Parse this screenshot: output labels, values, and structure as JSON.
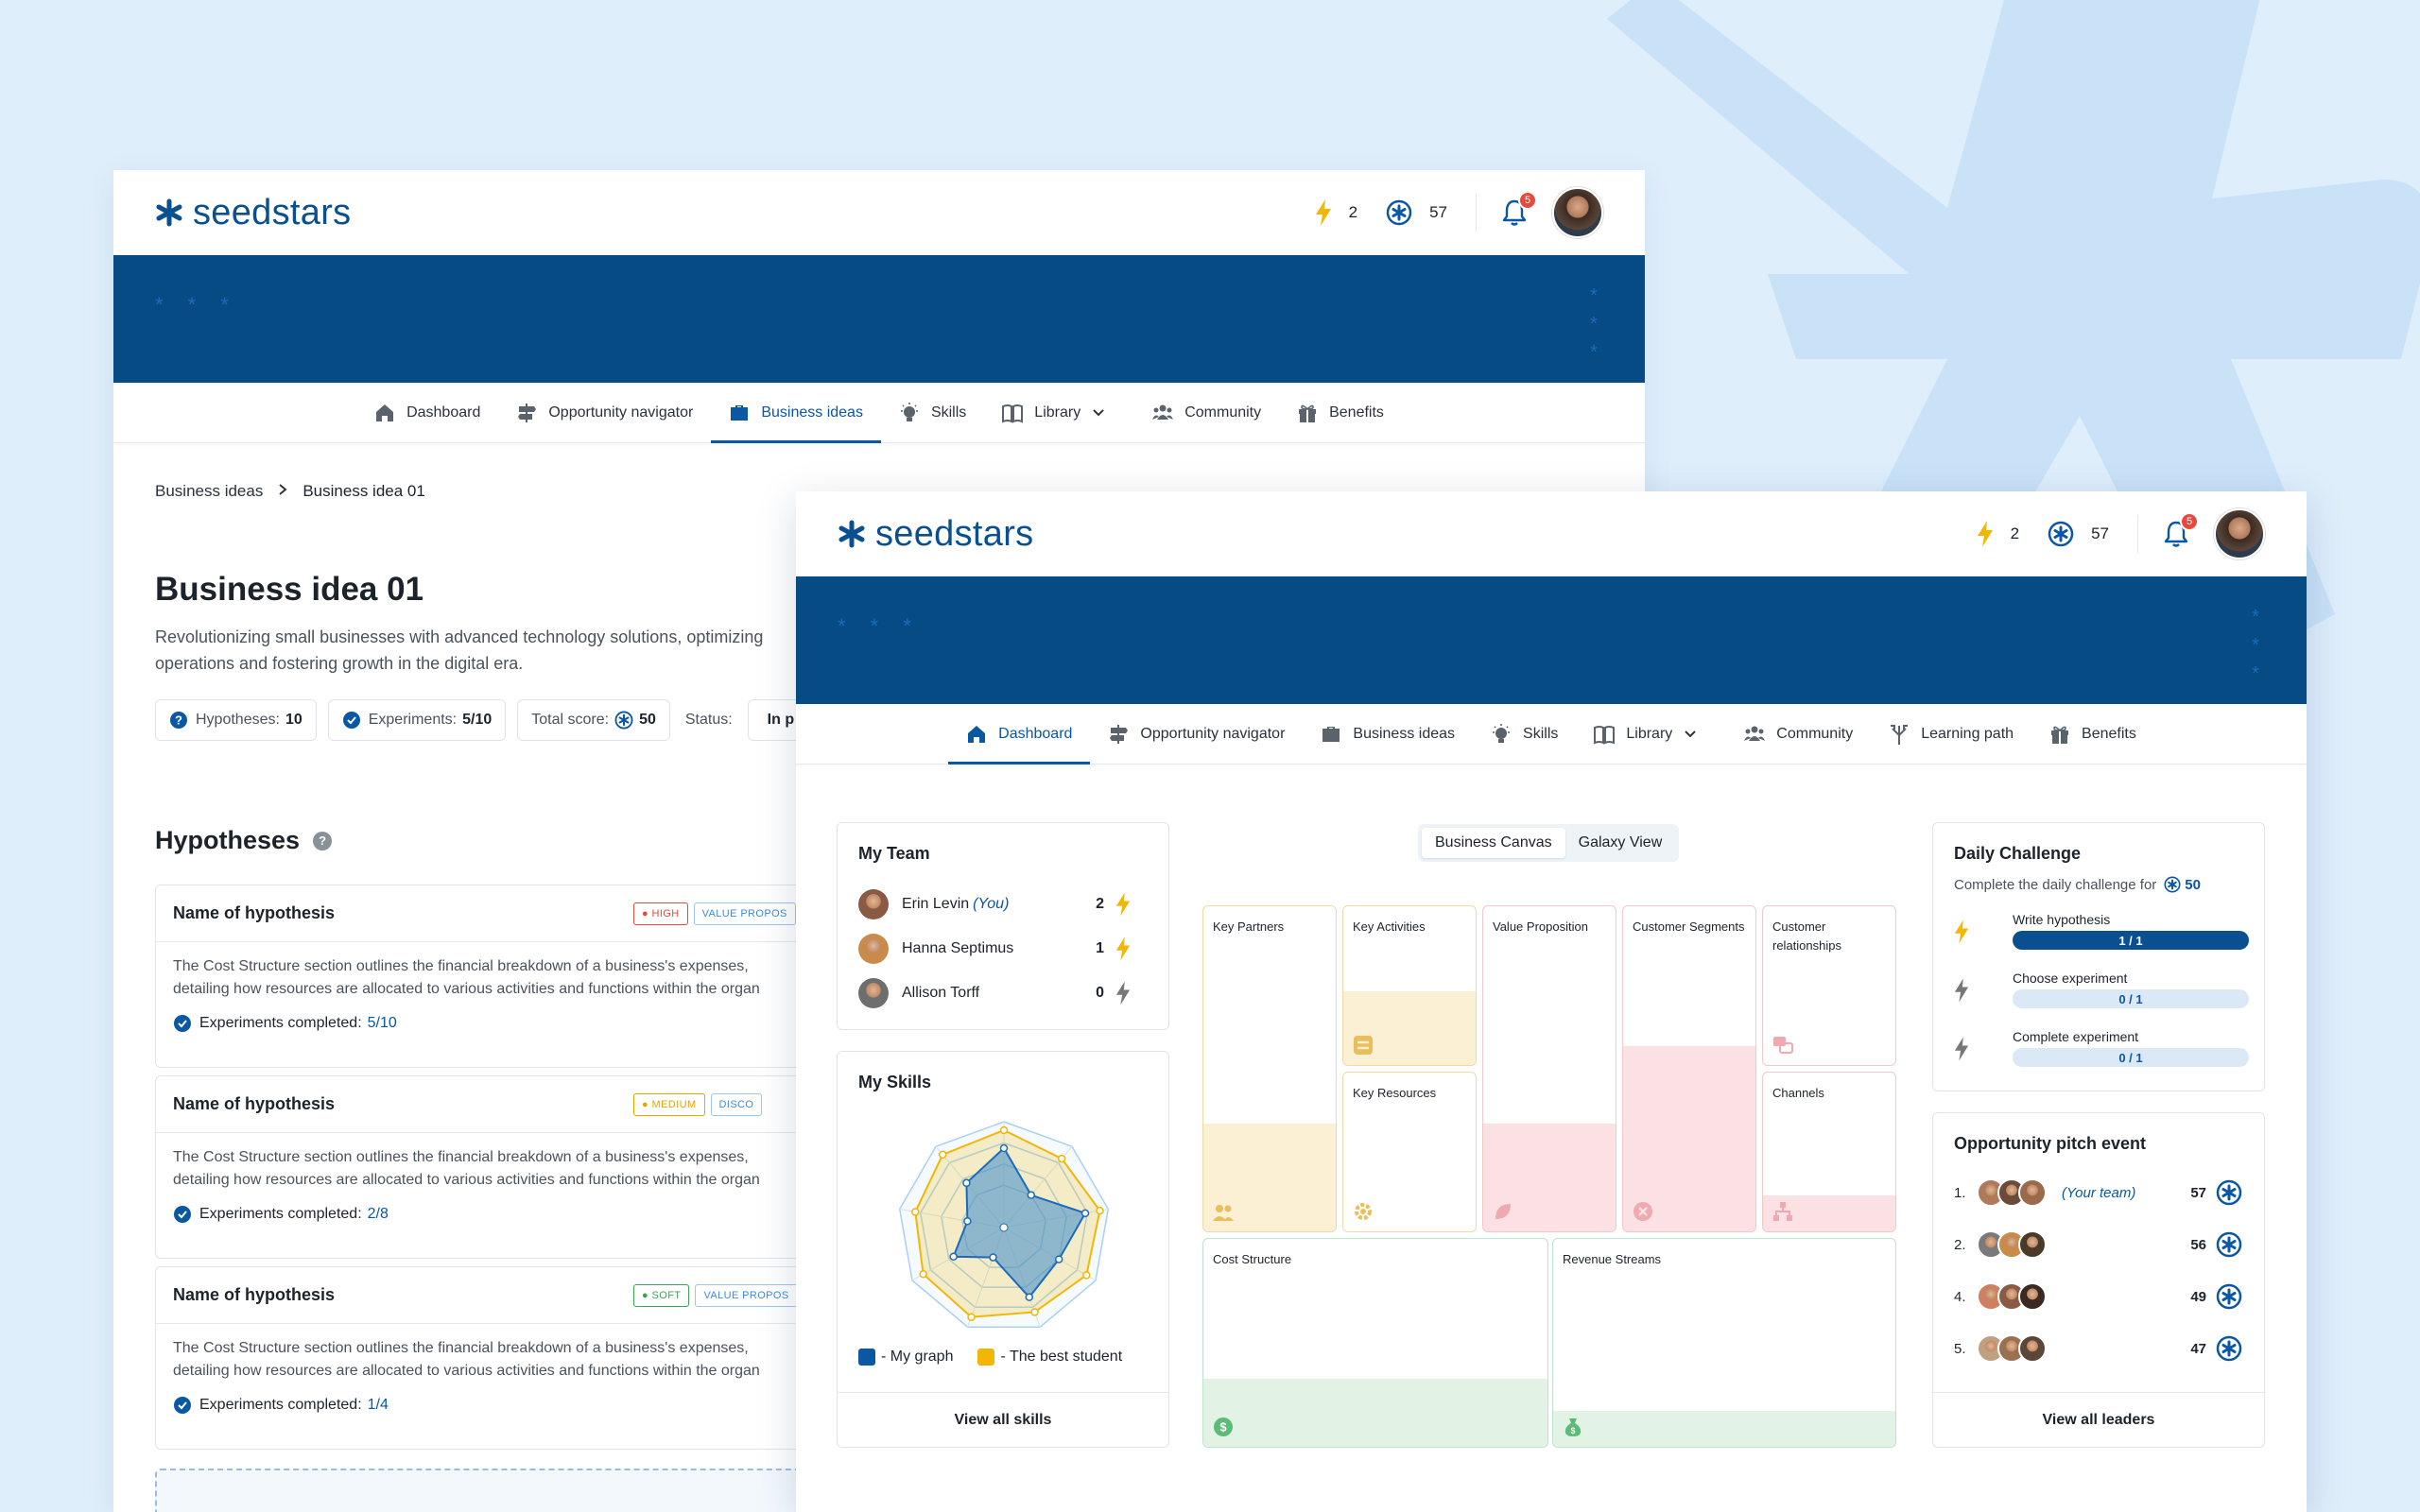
{
  "brand": {
    "name": "seedstars",
    "accent": "#0a4f8f",
    "banner": "#064b84"
  },
  "header": {
    "energy": "2",
    "stars": "57",
    "notifications": "5"
  },
  "banner": {
    "stars_h": "* * *"
  },
  "nav1": [
    {
      "label": "Dashboard",
      "icon": "home-icon"
    },
    {
      "label": "Opportunity navigator",
      "icon": "signpost-icon"
    },
    {
      "label": "Business ideas",
      "icon": "briefcase-icon",
      "active": true
    },
    {
      "label": "Skills",
      "icon": "lightbulb-icon"
    },
    {
      "label": "Library",
      "icon": "book-icon"
    },
    {
      "label": "Community",
      "icon": "people-icon"
    },
    {
      "label": "Benefits",
      "icon": "gift-icon"
    }
  ],
  "nav2": [
    {
      "label": "Dashboard",
      "icon": "home-icon",
      "active": true
    },
    {
      "label": "Opportunity navigator",
      "icon": "signpost-icon"
    },
    {
      "label": "Business ideas",
      "icon": "briefcase-icon"
    },
    {
      "label": "Skills",
      "icon": "lightbulb-icon"
    },
    {
      "label": "Library",
      "icon": "book-icon"
    },
    {
      "label": "Community",
      "icon": "people-icon"
    },
    {
      "label": "Learning path",
      "icon": "path-icon"
    },
    {
      "label": "Benefits",
      "icon": "gift-icon"
    }
  ],
  "idea": {
    "breadcrumb_parent": "Business ideas",
    "breadcrumb_current": "Business idea 01",
    "title": "Business idea 01",
    "description": "Revolutionizing small businesses with advanced technology solutions, optimizing operations and fostering growth in the digital era.",
    "hypotheses_label": "Hypotheses:",
    "hypotheses_value": "10",
    "experiments_label": "Experiments:",
    "experiments_value": "5/10",
    "score_label": "Total score:",
    "score_value": "50",
    "status_label": "Status:",
    "status_value": "In p"
  },
  "hypotheses": {
    "heading": "Hypotheses",
    "items": [
      {
        "name": "Name of hypothesis",
        "level": "HIGH",
        "level_color": "#e04a3f",
        "type": "VALUE PROPOS",
        "text1": "The Cost Structure section outlines the financial breakdown of a business's expenses,",
        "text2": "detailing how resources are allocated to various activities and functions within the organ",
        "exp_label": "Experiments completed:",
        "exp_value": "5/10"
      },
      {
        "name": "Name of hypothesis",
        "level": "MEDIUM",
        "level_color": "#e8a400",
        "type": "DISCO",
        "text1": "The Cost Structure section outlines the financial breakdown of a business's expenses,",
        "text2": "detailing how resources are allocated to various activities and functions within the organ",
        "exp_label": "Experiments completed:",
        "exp_value": "2/8"
      },
      {
        "name": "Name of hypothesis",
        "level": "SOFT",
        "level_color": "#3aa655",
        "type": "VALUE PROPOS",
        "text1": "The Cost Structure section outlines the financial breakdown of a business's expenses,",
        "text2": "detailing how resources are allocated to various activities and functions within the organ",
        "exp_label": "Experiments completed:",
        "exp_value": "1/4"
      }
    ]
  },
  "team": {
    "title": "My Team",
    "members": [
      {
        "name": "Erin Levin",
        "you": "(You)",
        "points": "2",
        "active": true
      },
      {
        "name": "Hanna Septimus",
        "you": "",
        "points": "1",
        "active": true
      },
      {
        "name": "Allison Torff",
        "you": "",
        "points": "0",
        "active": false
      }
    ]
  },
  "skills": {
    "title": "My Skills",
    "legend_mine": "- My graph",
    "legend_best": "- The best student",
    "footer": "View all skills",
    "my_graph": [
      0.75,
      0.4,
      0.78,
      0.6,
      0.7,
      0.3,
      0.55,
      0.35,
      0.55
    ],
    "best_student": [
      0.92,
      0.85,
      0.92,
      0.9,
      0.85,
      0.9,
      0.88,
      0.85,
      0.9
    ]
  },
  "canvas": {
    "tab_active": "Business Canvas",
    "tab_other": "Galaxy View",
    "key_partners": "Key Partners",
    "key_activities": "Key Activities",
    "key_resources": "Key Resources",
    "value_proposition": "Value Proposition",
    "customer_segments": "Customer Segments",
    "customer_relationships": "Customer relationships",
    "channels": "Channels",
    "cost_structure": "Cost Structure",
    "revenue_streams": "Revenue Streams"
  },
  "challenge": {
    "title": "Daily Challenge",
    "subtitle": "Complete the daily challenge for",
    "reward": "50",
    "tasks": [
      {
        "label": "Write hypothesis",
        "progress": "1 / 1",
        "done": true
      },
      {
        "label": "Choose  experiment",
        "progress": "0 / 1",
        "done": false
      },
      {
        "label": "Complete experiment",
        "progress": "0 / 1",
        "done": false
      }
    ]
  },
  "pitch": {
    "title": "Opportunity pitch event",
    "footer": "View all leaders",
    "rows": [
      {
        "rank": "1.",
        "team": "(Your team)",
        "points": "57"
      },
      {
        "rank": "2.",
        "team": "",
        "points": "56"
      },
      {
        "rank": "4.",
        "team": "",
        "points": "49"
      },
      {
        "rank": "5.",
        "team": "",
        "points": "47"
      }
    ]
  }
}
